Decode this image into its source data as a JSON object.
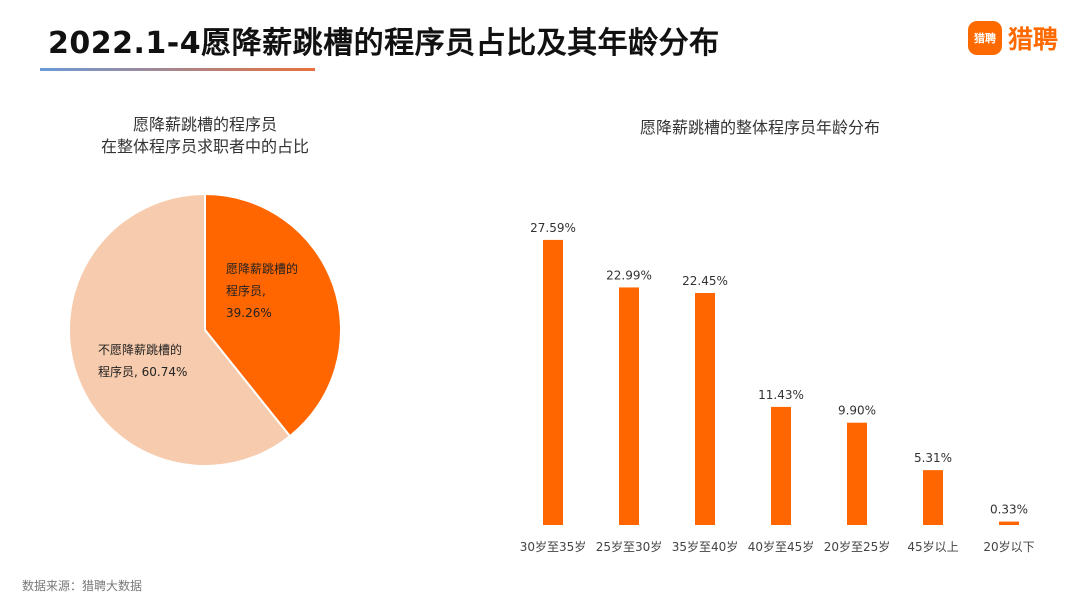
{
  "header": {
    "title": "2022.1-4愿降薪跳槽的程序员占比及其年龄分布",
    "logo_mark": "猎聘",
    "logo_text": "猎聘",
    "accent_color": "#ff6a00"
  },
  "pie": {
    "title_line1": "愿降薪跳槽的程序员",
    "title_line2": "在整体程序员求职者中的占比"
  },
  "bar": {
    "title": "愿降薪跳槽的整体程序员年龄分布"
  },
  "footer": {
    "source": "数据来源：猎聘大数据"
  },
  "chart_data": [
    {
      "type": "pie",
      "title": "愿降薪跳槽的程序员 在整体程序员求职者中的占比",
      "slices": [
        {
          "label_line1": "愿降薪跳槽的",
          "label_line2": "程序员,",
          "pct_text": "39.26%",
          "value": 39.26,
          "color": "#ff6600"
        },
        {
          "label_line1": "不愿降薪跳槽的",
          "label_line2": "程序员, 60.74%",
          "pct_text": "",
          "value": 60.74,
          "color": "#f7cbad"
        }
      ]
    },
    {
      "type": "bar",
      "title": "愿降薪跳槽的整体程序员年龄分布",
      "categories": [
        "30岁至35岁",
        "25岁至30岁",
        "35岁至40岁",
        "40岁至45岁",
        "20岁至25岁",
        "45岁以上",
        "20岁以下"
      ],
      "values": [
        27.59,
        22.99,
        22.45,
        11.43,
        9.9,
        5.31,
        0.33
      ],
      "value_labels": [
        "27.59%",
        "22.99%",
        "22.45%",
        "11.43%",
        "9.90%",
        "5.31%",
        "0.33%"
      ],
      "ylim": [
        0,
        30
      ],
      "color": "#ff6600"
    }
  ]
}
